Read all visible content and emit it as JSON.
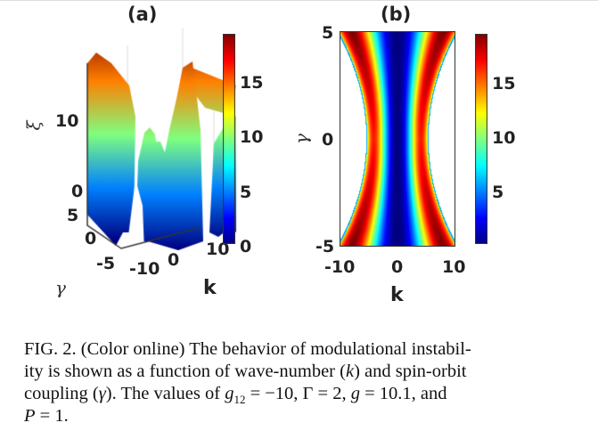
{
  "chart_data": [
    {
      "type": "surface3d",
      "title": "(a)",
      "xlabel": "k",
      "ylabel": "γ",
      "zlabel": "ξ",
      "xticks": [
        "-10",
        "0",
        "10"
      ],
      "yticks": [
        "-5",
        "0",
        "5"
      ],
      "zticks": [
        "0",
        "10"
      ],
      "xlim": [
        -10,
        10
      ],
      "ylim": [
        -5,
        5
      ],
      "zlim": [
        0,
        19
      ],
      "colorbar": {
        "ticks": [
          "0",
          "5",
          "10",
          "15"
        ],
        "range": [
          0,
          19
        ],
        "colormap": "jet"
      }
    },
    {
      "type": "heatmap",
      "title": "(b)",
      "xlabel": "k",
      "ylabel": "γ",
      "xticks": [
        "-10",
        "0",
        "10"
      ],
      "yticks": [
        "-5",
        "0",
        "5"
      ],
      "xlim": [
        -10,
        10
      ],
      "ylim": [
        -5,
        5
      ],
      "colorbar": {
        "ticks": [
          "5",
          "10",
          "15"
        ],
        "range": [
          0,
          19
        ],
        "colormap": "jet"
      }
    }
  ],
  "caption": {
    "l1": "FIG. 2. (Color online) The behavior of modulational instabil-",
    "l2a": "ity is shown as a function of wave-number (",
    "l2k": "k",
    "l2b": ") and spin-orbit",
    "l3a": "coupling (",
    "l3g": "γ",
    "l3b": ").  The values of ",
    "l3g12": "g",
    "l3sub": "12",
    "l3c": " = −10, Γ = 2, ",
    "l3gg": "g",
    "l3d": " = 10.1, and",
    "l4p": "P",
    "l4": " = 1."
  }
}
